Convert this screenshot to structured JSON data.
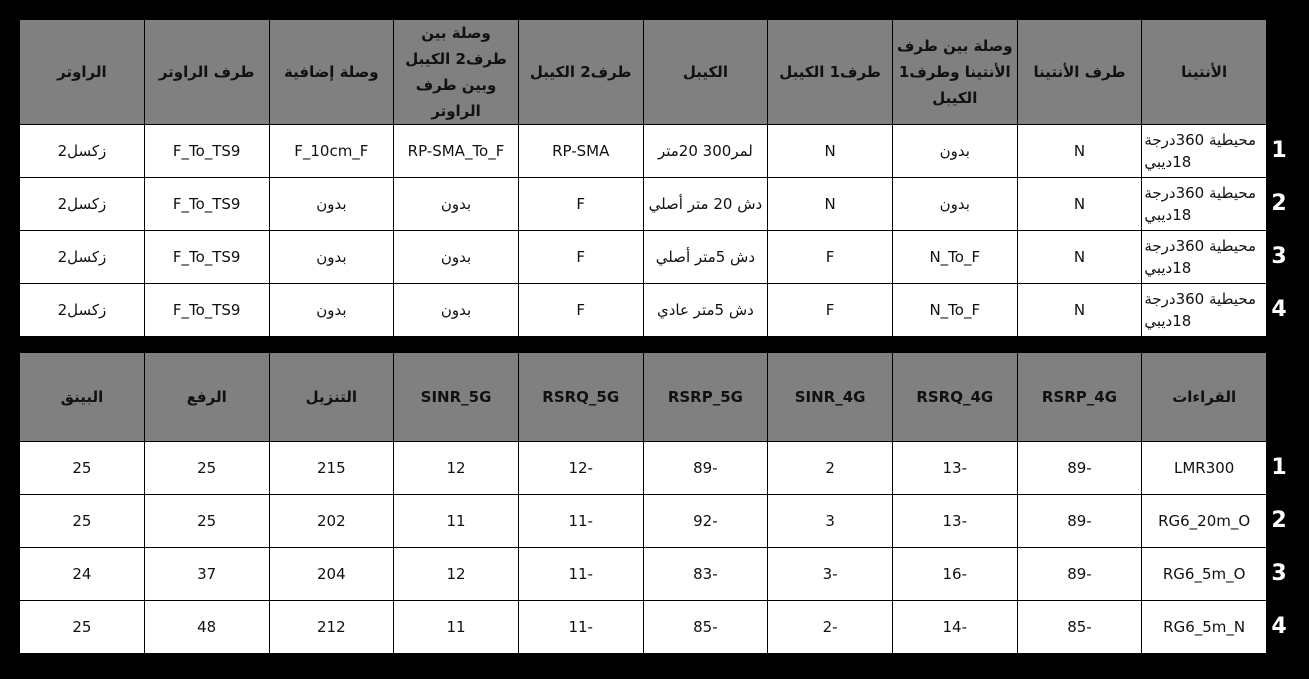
{
  "table1": {
    "headers": [
      "الأنتينا",
      "طرف الأنتينا",
      "وصلة بين طرف الأنتينا وطرف1 الكيبل",
      "طرف1 الكيبل",
      "الكيبل",
      "طرف2 الكيبل",
      "وصلة بين طرف2 الكيبل وبين طرف الراوتر",
      "وصلة إضافية",
      "طرف الراوتر",
      "الراوتر"
    ],
    "rows": [
      {
        "num": "1",
        "cells": [
          "محيطية 360درجة 18ديبي",
          "N",
          "بدون",
          "N",
          "لمر300 20متر",
          "RP-SMA",
          "RP-SMA_To_F",
          "F_10cm_F",
          "F_To_TS9",
          "زكسل2"
        ]
      },
      {
        "num": "2",
        "cells": [
          "محيطية 360درجة 18ديبي",
          "N",
          "بدون",
          "N",
          "دش 20 متر أصلي",
          "F",
          "بدون",
          "بدون",
          "F_To_TS9",
          "زكسل2"
        ]
      },
      {
        "num": "3",
        "cells": [
          "محيطية 360درجة 18ديبي",
          "N",
          "N_To_F",
          "F",
          "دش 5متر أصلي",
          "F",
          "بدون",
          "بدون",
          "F_To_TS9",
          "زكسل2"
        ]
      },
      {
        "num": "4",
        "cells": [
          "محيطية 360درجة 18ديبي",
          "N",
          "N_To_F",
          "F",
          "دش 5متر عادي",
          "F",
          "بدون",
          "بدون",
          "F_To_TS9",
          "زكسل2"
        ]
      }
    ]
  },
  "table2": {
    "headers": [
      "القراءات",
      "RSRP_4G",
      "RSRQ_4G",
      "SINR_4G",
      "RSRP_5G",
      "RSRQ_5G",
      "SINR_5G",
      "التنزيل",
      "الرفع",
      "البينق"
    ],
    "rows": [
      {
        "num": "1",
        "cells": [
          "LMR300",
          "-89",
          "-13",
          "2",
          "-89",
          "-12",
          "12",
          "215",
          "25",
          "25"
        ]
      },
      {
        "num": "2",
        "cells": [
          "RG6_20m_O",
          "-89",
          "-13",
          "3",
          "-92",
          "-11",
          "11",
          "202",
          "25",
          "25"
        ]
      },
      {
        "num": "3",
        "cells": [
          "RG6_5m_O",
          "-89",
          "-16",
          "-3",
          "-83",
          "-11",
          "12",
          "204",
          "37",
          "24"
        ]
      },
      {
        "num": "4",
        "cells": [
          "RG6_5m_N",
          "-85",
          "-14",
          "-2",
          "-85",
          "-11",
          "11",
          "212",
          "48",
          "25"
        ]
      }
    ]
  }
}
